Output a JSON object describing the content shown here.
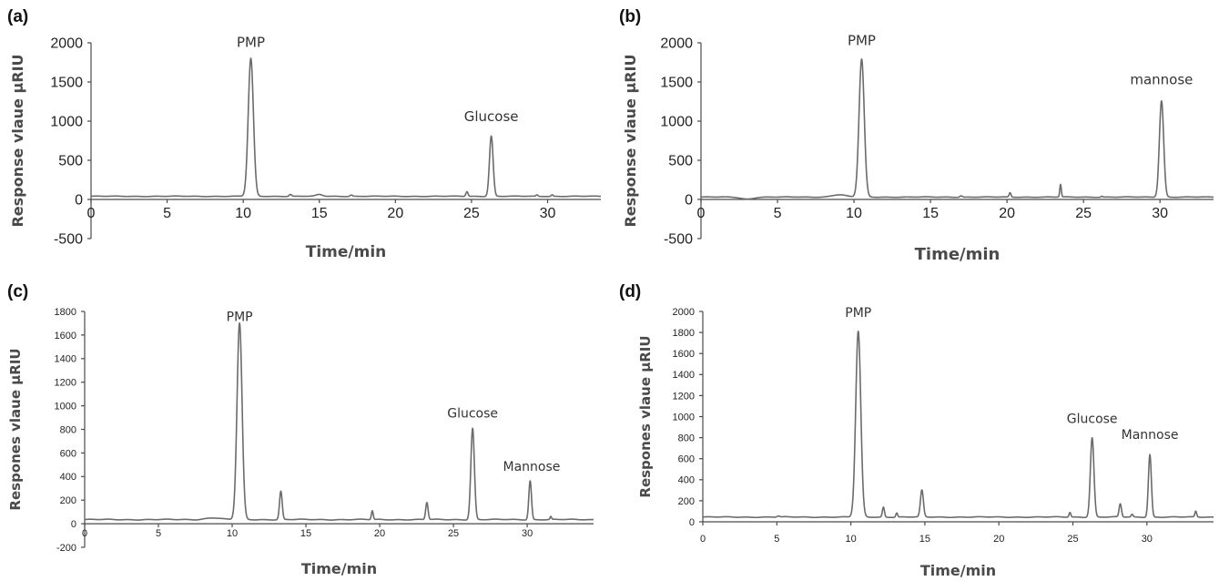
{
  "chart_data": [
    {
      "panel": "(a)",
      "type": "line",
      "xlabel": "Time/min",
      "ylabel": "Response vlaue μRIU",
      "xlim": [
        0,
        33.5
      ],
      "ylim": [
        -500,
        2000
      ],
      "xticks": [
        0,
        5,
        10,
        15,
        20,
        25,
        30
      ],
      "yticks": [
        -500,
        0,
        500,
        1000,
        1500,
        2000
      ],
      "baseline": 40,
      "peaks": [
        {
          "x": 10.5,
          "y": 1800,
          "w": 0.17
        },
        {
          "x": 13.1,
          "y": 65,
          "w": 0.08
        },
        {
          "x": 15.0,
          "y": 62,
          "w": 0.2
        },
        {
          "x": 17.1,
          "y": 58,
          "w": 0.08
        },
        {
          "x": 24.7,
          "y": 100,
          "w": 0.07
        },
        {
          "x": 26.3,
          "y": 810,
          "w": 0.12
        },
        {
          "x": 29.3,
          "y": 58,
          "w": 0.06
        },
        {
          "x": 30.3,
          "y": 60,
          "w": 0.06
        }
      ],
      "annotations": [
        {
          "text": "PMP",
          "x": 10.5,
          "y": 1950
        },
        {
          "text": "Glucose",
          "x": 26.3,
          "y": 1000
        }
      ]
    },
    {
      "panel": "(b)",
      "type": "line",
      "xlabel": "Time/min",
      "ylabel": "Response vlaue μRIU",
      "xlim": [
        0,
        33.5
      ],
      "ylim": [
        -500,
        2000
      ],
      "xticks": [
        0,
        5,
        10,
        15,
        20,
        25,
        30
      ],
      "yticks": [
        -500,
        0,
        500,
        1000,
        1500,
        2000
      ],
      "baseline": 30,
      "peaks": [
        {
          "x": 3.0,
          "y": 5,
          "w": 0.4
        },
        {
          "x": 9.0,
          "y": 60,
          "w": 0.45
        },
        {
          "x": 10.5,
          "y": 1790,
          "w": 0.17
        },
        {
          "x": 17.0,
          "y": 48,
          "w": 0.08
        },
        {
          "x": 20.2,
          "y": 85,
          "w": 0.06
        },
        {
          "x": 23.5,
          "y": 190,
          "w": 0.05
        },
        {
          "x": 26.2,
          "y": 42,
          "w": 0.06
        },
        {
          "x": 30.1,
          "y": 1260,
          "w": 0.14
        }
      ],
      "annotations": [
        {
          "text": "PMP",
          "x": 10.5,
          "y": 1970
        },
        {
          "text": "mannose",
          "x": 30.1,
          "y": 1470
        }
      ]
    },
    {
      "panel": "(c)",
      "type": "line",
      "xlabel": "Time/min",
      "ylabel": "Respones vlaue μRIU",
      "xlim": [
        0,
        34.5
      ],
      "ylim": [
        -200,
        1800
      ],
      "xticks": [
        0,
        5,
        10,
        15,
        20,
        25,
        30
      ],
      "yticks": [
        -200,
        0,
        200,
        400,
        600,
        800,
        1000,
        1200,
        1400,
        1600,
        1800
      ],
      "baseline": 35,
      "peaks": [
        {
          "x": 8.7,
          "y": 50,
          "w": 0.5
        },
        {
          "x": 10.5,
          "y": 1700,
          "w": 0.17
        },
        {
          "x": 13.3,
          "y": 275,
          "w": 0.09
        },
        {
          "x": 19.5,
          "y": 110,
          "w": 0.06
        },
        {
          "x": 23.2,
          "y": 180,
          "w": 0.08
        },
        {
          "x": 26.3,
          "y": 810,
          "w": 0.12
        },
        {
          "x": 30.2,
          "y": 365,
          "w": 0.09
        },
        {
          "x": 31.6,
          "y": 60,
          "w": 0.05
        }
      ],
      "annotations": [
        {
          "text": "PMP",
          "x": 10.5,
          "y": 1720
        },
        {
          "text": "Glucose",
          "x": 26.3,
          "y": 900
        },
        {
          "text": "Mannose",
          "x": 30.3,
          "y": 450
        }
      ]
    },
    {
      "panel": "(d)",
      "type": "line",
      "xlabel": "Time/min",
      "ylabel": "Respones vlaue μRIU",
      "xlim": [
        0,
        34.5
      ],
      "ylim": [
        0,
        2000
      ],
      "xticks": [
        0,
        5,
        10,
        15,
        20,
        25,
        30
      ],
      "yticks": [
        0,
        200,
        400,
        600,
        800,
        1000,
        1200,
        1400,
        1600,
        1800,
        2000
      ],
      "baseline": 45,
      "peaks": [
        {
          "x": 5.1,
          "y": 55,
          "w": 0.08
        },
        {
          "x": 10.5,
          "y": 1810,
          "w": 0.17
        },
        {
          "x": 12.2,
          "y": 140,
          "w": 0.07
        },
        {
          "x": 13.1,
          "y": 85,
          "w": 0.06
        },
        {
          "x": 14.8,
          "y": 300,
          "w": 0.1
        },
        {
          "x": 24.8,
          "y": 90,
          "w": 0.06
        },
        {
          "x": 26.3,
          "y": 800,
          "w": 0.12
        },
        {
          "x": 28.2,
          "y": 170,
          "w": 0.08
        },
        {
          "x": 29.0,
          "y": 70,
          "w": 0.06
        },
        {
          "x": 30.2,
          "y": 640,
          "w": 0.1
        },
        {
          "x": 33.3,
          "y": 100,
          "w": 0.06
        }
      ],
      "annotations": [
        {
          "text": "PMP",
          "x": 10.5,
          "y": 1950
        },
        {
          "text": "Glucose",
          "x": 26.3,
          "y": 940
        },
        {
          "text": "Mannose",
          "x": 30.2,
          "y": 790
        }
      ]
    }
  ]
}
